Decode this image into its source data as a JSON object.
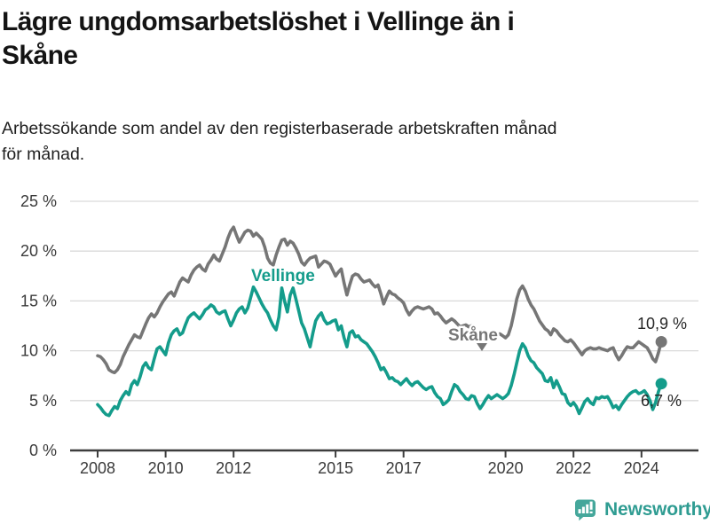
{
  "header": {
    "title_lines": [
      "Lägre ungdomsarbetslöshet i Vellinge än i",
      "Skåne"
    ],
    "subtitle_lines": [
      "Arbetssökande som andel av den registerbaserade arbetskraften månad",
      "för månad."
    ]
  },
  "colors": {
    "vellinge": "#149C8B",
    "skane": "#767676",
    "grid": "#D9D9D9",
    "axis": "#3D3D3D",
    "tick_text": "#3A3A3A",
    "annotation_text": "#262626",
    "logo_bubble": "#45A79B",
    "logo_text": "#2F9C92"
  },
  "chart_data": {
    "type": "line",
    "title": "Lägre ungdomsarbetslöshet i Vellinge än i Skåne",
    "xlabel": "",
    "ylabel": "Arbetssökande som andel av den registerbaserade arbetskraften",
    "grid": "horizontal",
    "x_start_year": 2008.0,
    "x_step_years": 0.08333,
    "x_ticks": [
      2008,
      2010,
      2012,
      2015,
      2017,
      2020,
      2022,
      2024
    ],
    "y_ticks": [
      0,
      5,
      10,
      15,
      20,
      25
    ],
    "y_tick_suffix": " %",
    "ylim": [
      0,
      25
    ],
    "series": [
      {
        "name": "Skåne",
        "color": "#767676",
        "end_label": "10,9 %",
        "end_value": 10.9,
        "values": [
          9.5,
          9.4,
          9.1,
          8.7,
          8.1,
          7.9,
          7.8,
          8.1,
          8.6,
          9.4,
          10.0,
          10.6,
          11.1,
          11.6,
          11.4,
          11.3,
          12.0,
          12.7,
          13.3,
          13.7,
          13.4,
          13.8,
          14.4,
          14.9,
          15.3,
          15.7,
          15.9,
          15.5,
          16.2,
          16.9,
          17.3,
          17.1,
          16.9,
          17.6,
          18.1,
          18.4,
          18.6,
          18.2,
          18.0,
          18.7,
          19.1,
          19.6,
          19.2,
          19.0,
          19.7,
          20.4,
          21.3,
          22.0,
          22.4,
          21.6,
          20.9,
          21.4,
          21.9,
          22.1,
          22.0,
          21.5,
          21.8,
          21.5,
          21.2,
          20.4,
          19.3,
          18.8,
          18.6,
          19.6,
          20.4,
          21.1,
          21.2,
          20.6,
          21.0,
          20.8,
          20.3,
          19.7,
          18.9,
          18.6,
          19.0,
          19.3,
          19.4,
          19.5,
          18.4,
          18.7,
          19.0,
          18.9,
          18.7,
          18.1,
          17.5,
          17.9,
          18.2,
          16.8,
          15.6,
          16.6,
          17.5,
          17.7,
          17.6,
          17.2,
          16.9,
          17.0,
          17.1,
          16.7,
          16.4,
          16.6,
          15.7,
          14.7,
          15.4,
          16.0,
          15.7,
          15.6,
          15.3,
          15.1,
          14.8,
          14.1,
          13.6,
          14.0,
          14.3,
          14.4,
          14.3,
          14.2,
          14.3,
          14.4,
          14.2,
          13.7,
          13.8,
          13.5,
          13.1,
          12.8,
          13.0,
          13.2,
          13.0,
          12.7,
          12.4,
          12.5,
          12.6,
          12.4,
          12.5,
          12.2,
          11.8,
          11.4,
          11.6,
          11.9,
          11.6,
          11.2,
          11.4,
          11.6,
          11.7,
          11.5,
          11.3,
          11.6,
          12.5,
          13.8,
          15.2,
          16.1,
          16.5,
          16.0,
          15.2,
          14.6,
          14.2,
          13.6,
          13.0,
          12.6,
          12.2,
          12.0,
          11.6,
          12.2,
          12.0,
          11.6,
          11.3,
          11.0,
          10.9,
          11.1,
          10.8,
          10.4,
          10.0,
          9.6,
          10.0,
          10.2,
          10.3,
          10.2,
          10.2,
          10.3,
          10.2,
          10.1,
          10.0,
          10.2,
          10.3,
          9.6,
          9.1,
          9.5,
          10.0,
          10.4,
          10.3,
          10.3,
          10.6,
          10.9,
          10.7,
          10.5,
          10.3,
          9.8,
          9.2,
          8.9,
          9.8,
          10.9
        ]
      },
      {
        "name": "Vellinge",
        "color": "#149C8B",
        "end_label": "6,7 %",
        "end_value": 6.7,
        "values": [
          4.6,
          4.3,
          3.9,
          3.6,
          3.5,
          4.0,
          4.4,
          4.2,
          5.0,
          5.5,
          5.9,
          5.6,
          6.6,
          7.0,
          6.6,
          7.4,
          8.4,
          8.8,
          8.3,
          8.1,
          9.2,
          10.2,
          10.4,
          10.0,
          9.6,
          10.8,
          11.6,
          12.0,
          12.2,
          11.6,
          11.8,
          12.6,
          13.3,
          13.6,
          13.8,
          13.5,
          13.2,
          13.6,
          14.1,
          14.3,
          14.6,
          14.4,
          13.9,
          13.7,
          13.9,
          14.0,
          13.2,
          12.5,
          13.1,
          13.8,
          14.2,
          14.4,
          13.8,
          14.3,
          15.3,
          16.4,
          15.9,
          15.3,
          14.7,
          14.2,
          13.8,
          13.1,
          12.5,
          12.1,
          13.4,
          16.3,
          15.0,
          13.9,
          15.6,
          16.3,
          15.2,
          14.0,
          12.8,
          12.2,
          11.3,
          10.4,
          11.8,
          13.0,
          13.5,
          13.8,
          13.1,
          12.7,
          12.8,
          13.0,
          13.1,
          12.1,
          12.5,
          11.3,
          10.4,
          11.8,
          12.0,
          11.4,
          11.5,
          11.1,
          10.9,
          10.7,
          10.3,
          9.9,
          9.4,
          8.8,
          8.1,
          8.3,
          7.8,
          7.2,
          7.3,
          7.0,
          6.9,
          6.6,
          6.9,
          7.2,
          6.8,
          6.5,
          6.8,
          6.9,
          6.6,
          6.3,
          6.1,
          6.3,
          6.4,
          5.8,
          5.4,
          5.2,
          4.6,
          4.8,
          5.1,
          5.9,
          6.6,
          6.4,
          5.9,
          5.6,
          5.2,
          5.1,
          5.5,
          5.4,
          4.7,
          4.2,
          4.6,
          5.1,
          5.5,
          5.2,
          5.4,
          5.6,
          5.4,
          5.2,
          5.4,
          5.7,
          6.5,
          7.6,
          8.8,
          10.0,
          10.7,
          10.3,
          9.5,
          9.0,
          8.8,
          8.3,
          8.0,
          7.7,
          7.0,
          6.9,
          7.3,
          6.3,
          7.0,
          6.4,
          5.7,
          5.6,
          4.8,
          4.5,
          4.8,
          4.4,
          3.7,
          4.3,
          4.9,
          5.2,
          4.8,
          4.6,
          5.3,
          5.2,
          5.4,
          5.3,
          5.4,
          4.9,
          4.3,
          4.5,
          4.1,
          4.6,
          5.0,
          5.4,
          5.7,
          5.9,
          6.0,
          5.7,
          5.8,
          6.0,
          5.6,
          5.0,
          4.1,
          4.8,
          5.9,
          6.7
        ]
      }
    ],
    "annotations": {
      "vellinge_label": "Vellinge",
      "skane_label": "Skåne",
      "skane_pointer_icon": "caret-down-icon",
      "skane_end_label": "10,9 %",
      "vellinge_end_label": "6,7 %"
    }
  },
  "footer": {
    "brand": "Newsworthy",
    "icon": "bar-chart-speech-bubble-icon"
  }
}
